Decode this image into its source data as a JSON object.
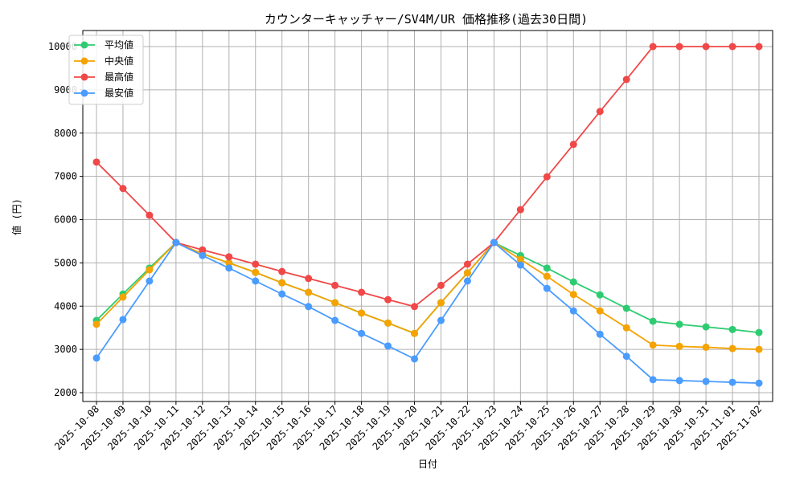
{
  "chart_data": {
    "type": "line",
    "title": "カウンターキャッチャー/SV4M/UR 価格推移(過去30日間)",
    "xlabel": "日付",
    "ylabel": "値 (円)",
    "ylim": [
      1800,
      10380
    ],
    "yticks": [
      2000,
      3000,
      4000,
      5000,
      6000,
      7000,
      8000,
      9000,
      10000
    ],
    "grid": true,
    "legend_position": "top-left",
    "x": [
      "2025-10-08",
      "2025-10-09",
      "2025-10-10",
      "2025-10-11",
      "2025-10-12",
      "2025-10-13",
      "2025-10-14",
      "2025-10-15",
      "2025-10-16",
      "2025-10-17",
      "2025-10-18",
      "2025-10-19",
      "2025-10-20",
      "2025-10-21",
      "2025-10-22",
      "2025-10-23",
      "2025-10-24",
      "2025-10-25",
      "2025-10-26",
      "2025-10-27",
      "2025-10-28",
      "2025-10-29",
      "2025-10-30",
      "2025-10-31",
      "2025-11-01",
      "2025-11-02"
    ],
    "series": [
      {
        "name": "平均値",
        "color": "#2ecc71",
        "values": [
          3670,
          4280,
          4880,
          5470,
          5210,
          5000,
          4780,
          4540,
          4320,
          4080,
          3840,
          3610,
          3370,
          4080,
          4770,
          5470,
          5170,
          4880,
          4560,
          4260,
          3950,
          3650,
          3580,
          3520,
          3460,
          3390
        ]
      },
      {
        "name": "中央値",
        "color": "#f5a300",
        "values": [
          3580,
          4210,
          4840,
          5470,
          5210,
          5000,
          4780,
          4540,
          4320,
          4080,
          3840,
          3610,
          3370,
          4080,
          4770,
          5470,
          5080,
          4690,
          4270,
          3890,
          3500,
          3100,
          3070,
          3050,
          3020,
          3000
        ]
      },
      {
        "name": "最高値",
        "color": "#f04848",
        "values": [
          7330,
          6720,
          6100,
          5470,
          5300,
          5140,
          4970,
          4800,
          4640,
          4480,
          4320,
          4150,
          3990,
          4480,
          4970,
          5470,
          6230,
          6990,
          7740,
          8500,
          9240,
          10000,
          10000,
          10000,
          10000,
          10000
        ]
      },
      {
        "name": "最安値",
        "color": "#4a9cff",
        "values": [
          2800,
          3690,
          4580,
          5470,
          5170,
          4880,
          4580,
          4280,
          3990,
          3670,
          3370,
          3080,
          2780,
          3670,
          4580,
          5470,
          4950,
          4410,
          3890,
          3350,
          2840,
          2300,
          2280,
          2260,
          2240,
          2220
        ]
      }
    ]
  }
}
